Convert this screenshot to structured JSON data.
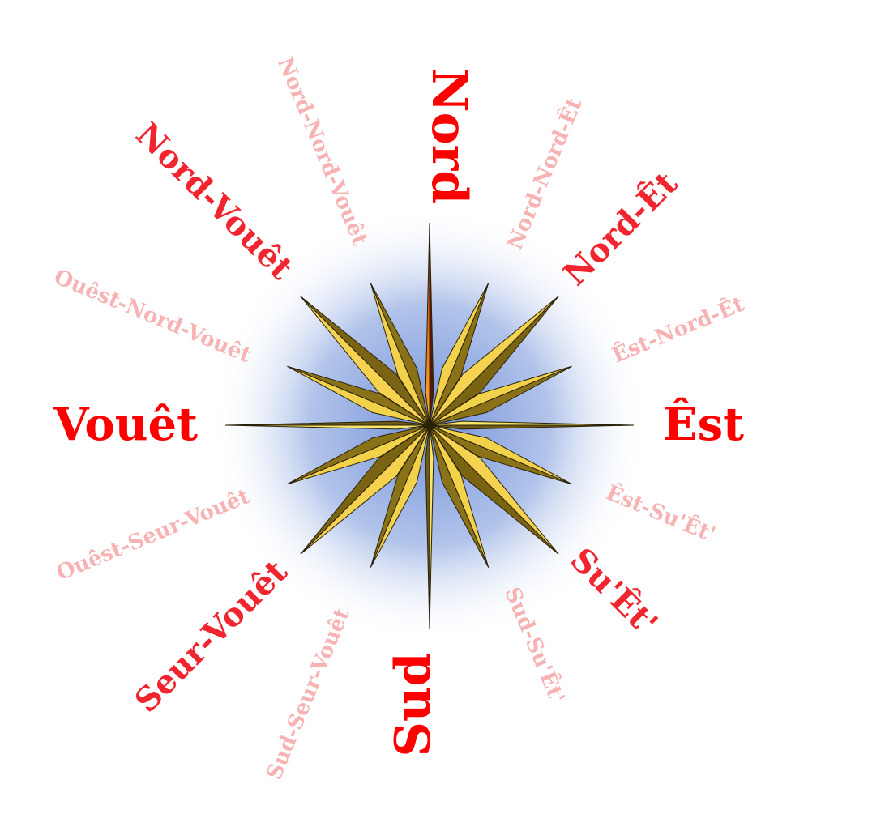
{
  "compass": {
    "cardinals": {
      "north": "Nord",
      "east": "Êst",
      "south": "Sud",
      "west": "Vouêt"
    },
    "intercardinals": {
      "northeast": "Nord-Êt",
      "southeast": "Su'Êt'",
      "southwest": "Seur-Vouêt",
      "northwest": "Nord-Vouêt"
    },
    "secondary_intercardinals": {
      "nne": "Nord-Nord-Êt",
      "ene": "Êst-Nord-Êt",
      "ese": "Êst-Su'Êt'",
      "sse": "Sud-Su'Êt'",
      "ssw": "Sud-Seur-Vouêt",
      "wsw": "Ouêst-Seur-Vouêt",
      "wnw": "Ouêst-Nord-Vouêt",
      "nnw": "Nord-Nord-Vouêt"
    }
  },
  "colors": {
    "cardinal_text": "#ff0000",
    "intercardinal_text": "#f0252f",
    "secondary_text": "#f7b3b3",
    "star_light": "#f2d24a",
    "star_dark": "#8a7218",
    "north_point_light": "#ff7a1a",
    "north_point_dark": "#5a1a08",
    "halo_center": "#8fa9e0"
  }
}
